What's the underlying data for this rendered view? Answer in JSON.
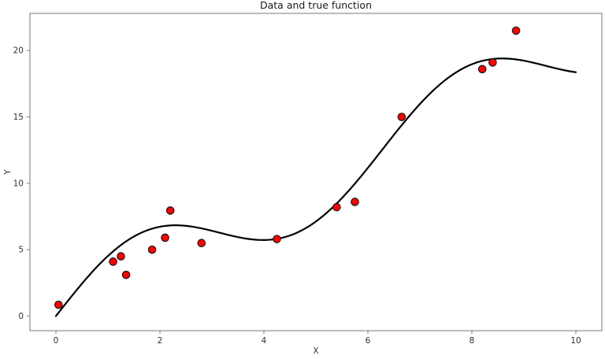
{
  "figure": {
    "background_color": "#ffffff",
    "spine_color": "#7a7a7a",
    "text_color": "#333333"
  },
  "chart_data": {
    "type": "scatter",
    "title": "Data and true function",
    "xlabel": "X",
    "ylabel": "Y",
    "xlim": [
      -0.5,
      10.5
    ],
    "ylim": [
      -1.1,
      22.8
    ],
    "x_ticks": [
      0,
      2,
      4,
      6,
      8,
      10
    ],
    "y_ticks": [
      0,
      5,
      10,
      15,
      20
    ],
    "grid": false,
    "legend": "none",
    "series": [
      {
        "name": "true-function",
        "type": "line",
        "color": "#000000",
        "line_width": 2.2,
        "function_form": "a*x + b*sin(x)",
        "a": 2,
        "b": 3,
        "x_range": [
          0,
          10
        ]
      },
      {
        "name": "data-points",
        "type": "scatter",
        "marker_color": "#ff0000",
        "marker_edge_color": "#1a1a1a",
        "marker_radius": 4.7,
        "points": [
          {
            "x": 0.05,
            "y": 0.85
          },
          {
            "x": 1.1,
            "y": 4.1
          },
          {
            "x": 1.25,
            "y": 4.5
          },
          {
            "x": 1.35,
            "y": 3.1
          },
          {
            "x": 1.85,
            "y": 5.0
          },
          {
            "x": 2.1,
            "y": 5.9
          },
          {
            "x": 2.2,
            "y": 7.95
          },
          {
            "x": 2.8,
            "y": 5.5
          },
          {
            "x": 4.25,
            "y": 5.8
          },
          {
            "x": 5.4,
            "y": 8.2
          },
          {
            "x": 5.75,
            "y": 8.6
          },
          {
            "x": 6.65,
            "y": 15.0
          },
          {
            "x": 8.2,
            "y": 18.6
          },
          {
            "x": 8.4,
            "y": 19.1
          },
          {
            "x": 8.85,
            "y": 21.5
          }
        ]
      }
    ]
  }
}
